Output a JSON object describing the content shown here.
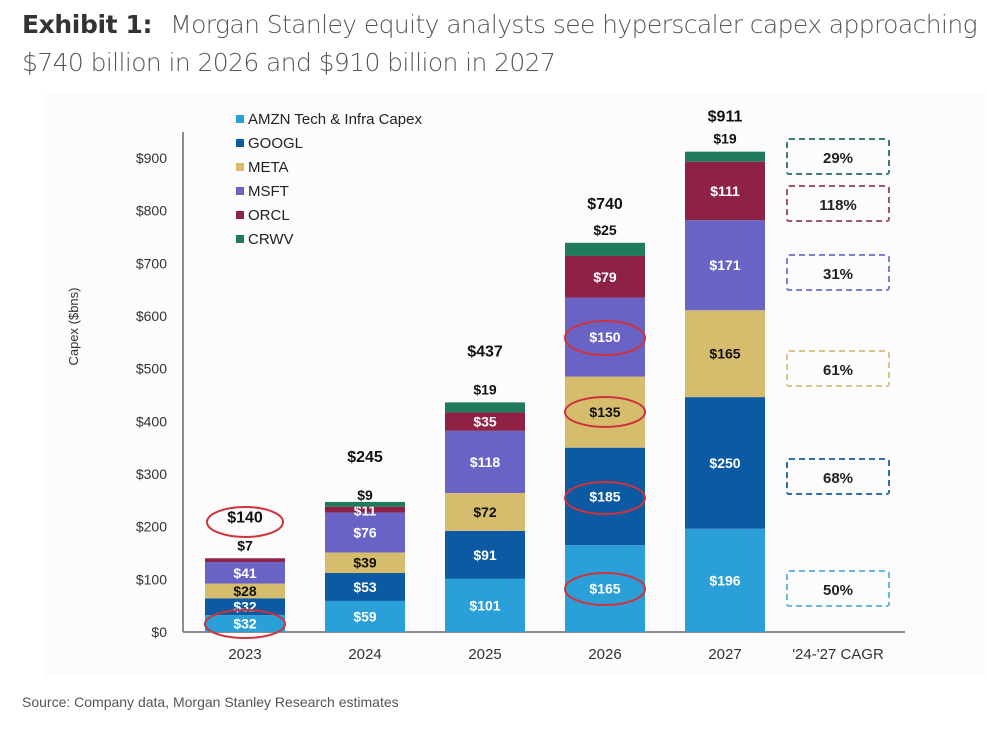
{
  "header": {
    "exhibit_label": "Exhibit 1:",
    "title": "Morgan Stanley equity analysts see hyperscaler capex approaching $740 billion in 2026 and $910 billion in 2027"
  },
  "source": "Source: Company data, Morgan Stanley Research estimates",
  "chart_data": {
    "type": "bar",
    "stacked": true,
    "title": "Morgan Stanley equity analysts see hyperscaler capex approaching $740 billion in 2026 and $910 billion in 2027",
    "xlabel": "",
    "ylabel": "Capex ($bns)",
    "ylim": [
      0,
      950
    ],
    "yticks": [
      0,
      100,
      200,
      300,
      400,
      500,
      600,
      700,
      800,
      900
    ],
    "ytick_labels": [
      "$0",
      "$100",
      "$200",
      "$300",
      "$400",
      "$500",
      "$600",
      "$700",
      "$800",
      "$900"
    ],
    "categories": [
      "2023",
      "2024",
      "2025",
      "2026",
      "2027"
    ],
    "extra_category_label": "'24-'27 CAGR",
    "legend_position": "top-left",
    "series": [
      {
        "name": "AMZN Tech & Infra Capex",
        "color": "#2a9fd8",
        "label_color": "#ffffff",
        "values": [
          32,
          59,
          101,
          165,
          196
        ],
        "cagr": "50%",
        "cagr_box_color": "#6ab8dc"
      },
      {
        "name": "GOOGL",
        "color": "#0b5aa3",
        "label_color": "#ffffff",
        "values": [
          32,
          53,
          91,
          185,
          250
        ],
        "cagr": "68%",
        "cagr_box_color": "#2f6fb0"
      },
      {
        "name": "META",
        "color": "#d6bd6e",
        "label_color": "#111111",
        "values": [
          28,
          39,
          72,
          135,
          165
        ],
        "cagr": "61%",
        "cagr_box_color": "#d8c58c"
      },
      {
        "name": "MSFT",
        "color": "#6a63c6",
        "label_color": "#ffffff",
        "values": [
          41,
          76,
          118,
          150,
          171
        ],
        "cagr": "31%",
        "cagr_box_color": "#7b7fcf"
      },
      {
        "name": "ORCL",
        "color": "#8f2244",
        "label_color": "#ffffff",
        "values": [
          7,
          11,
          35,
          79,
          111
        ],
        "cagr": "118%",
        "cagr_box_color": "#a0566e"
      },
      {
        "name": "CRWV",
        "color": "#1f7a5e",
        "label_color": "#111111",
        "values": [
          0,
          9,
          19,
          25,
          19
        ],
        "cagr": "29%",
        "cagr_box_color": "#3f7a78"
      }
    ],
    "segment_labels": [
      [
        "$32",
        "$32",
        "$28",
        "$41",
        "$7",
        ""
      ],
      [
        "$59",
        "$53",
        "$39",
        "$76",
        "$11",
        "$9"
      ],
      [
        "$101",
        "$91",
        "$72",
        "$118",
        "$35",
        "$19"
      ],
      [
        "$165",
        "$185",
        "$135",
        "$150",
        "$79",
        "$25"
      ],
      [
        "$196",
        "$250",
        "$165",
        "$171",
        "$111",
        "$19"
      ]
    ],
    "totals": [
      140,
      245,
      437,
      740,
      911
    ],
    "total_labels": [
      "$140",
      "$245",
      "$437",
      "$740",
      "$911"
    ],
    "annotations": [
      {
        "type": "circle",
        "target": "total",
        "category": "2023",
        "color": "#d0333a"
      },
      {
        "type": "circle",
        "target": "AMZN Tech & Infra Capex",
        "category": "2023",
        "color": "#d0333a"
      },
      {
        "type": "circle",
        "target": "MSFT",
        "category": "2026",
        "color": "#d0333a"
      },
      {
        "type": "circle",
        "target": "META",
        "category": "2026",
        "color": "#d0333a"
      },
      {
        "type": "circle",
        "target": "GOOGL",
        "category": "2026",
        "color": "#d0333a"
      },
      {
        "type": "circle",
        "target": "AMZN Tech & Infra Capex",
        "category": "2026",
        "color": "#d0333a"
      }
    ]
  }
}
